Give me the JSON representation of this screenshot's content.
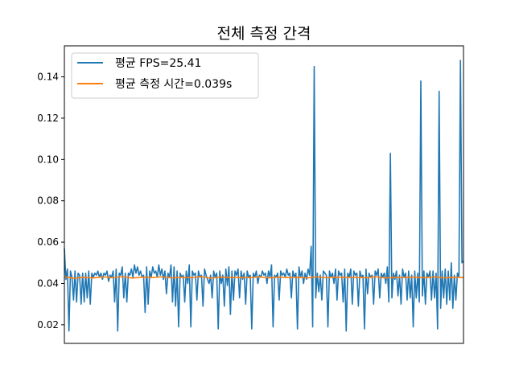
{
  "chart_data": {
    "type": "line",
    "title": "전체 측정 간격",
    "xlabel": "",
    "ylabel": "",
    "x_ticks_visible": false,
    "yticks": [
      "0.02",
      "0.04",
      "0.06",
      "0.08",
      "0.10",
      "0.12",
      "0.14"
    ],
    "ylim": [
      0.011,
      0.155
    ],
    "xlim": [
      0,
      340
    ],
    "grid": false,
    "legend_position": "top-left",
    "series": [
      {
        "name": "평균 FPS=25.41",
        "color": "#1f77b4",
        "y": [
          0.057,
          0.042,
          0.047,
          0.017,
          0.046,
          0.043,
          0.032,
          0.046,
          0.031,
          0.045,
          0.044,
          0.03,
          0.045,
          0.031,
          0.045,
          0.033,
          0.046,
          0.03,
          0.045,
          0.043,
          0.045,
          0.044,
          0.046,
          0.043,
          0.045,
          0.042,
          0.045,
          0.044,
          0.046,
          0.041,
          0.044,
          0.043,
          0.046,
          0.031,
          0.047,
          0.017,
          0.045,
          0.044,
          0.048,
          0.033,
          0.045,
          0.031,
          0.045,
          0.044,
          0.047,
          0.043,
          0.049,
          0.045,
          0.048,
          0.044,
          0.046,
          0.043,
          0.044,
          0.026,
          0.048,
          0.03,
          0.046,
          0.043,
          0.048,
          0.045,
          0.046,
          0.043,
          0.049,
          0.044,
          0.047,
          0.042,
          0.046,
          0.035,
          0.045,
          0.043,
          0.049,
          0.031,
          0.048,
          0.029,
          0.046,
          0.019,
          0.045,
          0.043,
          0.044,
          0.031,
          0.046,
          0.04,
          0.049,
          0.019,
          0.046,
          0.044,
          0.045,
          0.032,
          0.046,
          0.043,
          0.044,
          0.029,
          0.047,
          0.044,
          0.042,
          0.04,
          0.044,
          0.033,
          0.046,
          0.043,
          0.045,
          0.018,
          0.046,
          0.04,
          0.044,
          0.029,
          0.047,
          0.039,
          0.048,
          0.025,
          0.046,
          0.032,
          0.046,
          0.044,
          0.047,
          0.033,
          0.046,
          0.042,
          0.045,
          0.03,
          0.046,
          0.043,
          0.044,
          0.018,
          0.045,
          0.043,
          0.046,
          0.04,
          0.044,
          0.043,
          0.046,
          0.044,
          0.045,
          0.04,
          0.046,
          0.043,
          0.049,
          0.019,
          0.044,
          0.043,
          0.045,
          0.032,
          0.046,
          0.044,
          0.045,
          0.043,
          0.047,
          0.044,
          0.045,
          0.033,
          0.046,
          0.043,
          0.045,
          0.018,
          0.048,
          0.043,
          0.046,
          0.04,
          0.045,
          0.042,
          0.047,
          0.044,
          0.058,
          0.019,
          0.145,
          0.033,
          0.045,
          0.036,
          0.044,
          0.032,
          0.046,
          0.045,
          0.044,
          0.019,
          0.046,
          0.043,
          0.045,
          0.04,
          0.047,
          0.032,
          0.046,
          0.044,
          0.045,
          0.031,
          0.047,
          0.017,
          0.045,
          0.043,
          0.047,
          0.03,
          0.046,
          0.044,
          0.045,
          0.029,
          0.046,
          0.043,
          0.044,
          0.018,
          0.047,
          0.035,
          0.045,
          0.043,
          0.044,
          0.03,
          0.046,
          0.044,
          0.047,
          0.033,
          0.045,
          0.043,
          0.045,
          0.04,
          0.048,
          0.031,
          0.103,
          0.033,
          0.045,
          0.042,
          0.046,
          0.034,
          0.044,
          0.03,
          0.047,
          0.043,
          0.045,
          0.032,
          0.046,
          0.033,
          0.044,
          0.019,
          0.046,
          0.033,
          0.045,
          0.031,
          0.138,
          0.034,
          0.046,
          0.03,
          0.045,
          0.043,
          0.046,
          0.032,
          0.046,
          0.033,
          0.045,
          0.018,
          0.133,
          0.028,
          0.046,
          0.033,
          0.047,
          0.03,
          0.046,
          0.032,
          0.05,
          0.028,
          0.044,
          0.032,
          0.045,
          0.043,
          0.148,
          0.05,
          0.051
        ],
        "linewidth": 1.6
      },
      {
        "name": "평균 측정 시간=0.039s",
        "color": "#ff7f0e",
        "y": [
          0.0432,
          0.0425,
          0.043,
          0.0427,
          0.0432,
          0.0428,
          0.0433,
          0.0426,
          0.0431,
          0.0429,
          0.0432,
          0.0427,
          0.043,
          0.0428,
          0.0433,
          0.0426,
          0.0431,
          0.0429,
          0.043,
          0.0428,
          0.0432,
          0.0427,
          0.0431,
          0.0429,
          0.043,
          0.0427,
          0.0432,
          0.0428,
          0.0431,
          0.0429,
          0.043,
          0.0428,
          0.0432,
          0.0427,
          0.043,
          0.0429,
          0.0431,
          0.0428,
          0.0432,
          0.0427,
          0.043,
          0.0429
        ],
        "linewidth": 1.6
      }
    ]
  }
}
